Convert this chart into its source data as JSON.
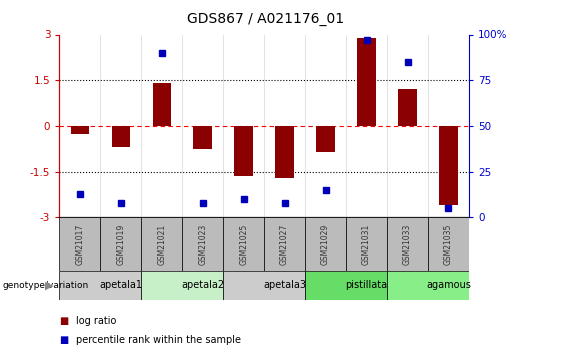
{
  "title": "GDS867 / A021176_01",
  "samples": [
    "GSM21017",
    "GSM21019",
    "GSM21021",
    "GSM21023",
    "GSM21025",
    "GSM21027",
    "GSM21029",
    "GSM21031",
    "GSM21033",
    "GSM21035"
  ],
  "log_ratio": [
    -0.25,
    -0.7,
    1.4,
    -0.75,
    -1.65,
    -1.7,
    -0.85,
    2.9,
    1.2,
    -2.6
  ],
  "percentile_rank": [
    13,
    8,
    90,
    8,
    10,
    8,
    15,
    97,
    85,
    5
  ],
  "ylim": [
    -3,
    3
  ],
  "yticks": [
    -3,
    -1.5,
    0,
    1.5,
    3
  ],
  "ytick_labels_left": [
    "-3",
    "-1.5",
    "0",
    "1.5",
    "3"
  ],
  "ytick_labels_right": [
    "0",
    "25",
    "50",
    "75",
    "100%"
  ],
  "groups": [
    {
      "name": "apetala1",
      "start": 0,
      "end": 2,
      "color": "#cccccc"
    },
    {
      "name": "apetala2",
      "start": 2,
      "end": 4,
      "color": "#c8f0c8"
    },
    {
      "name": "apetala3",
      "start": 4,
      "end": 6,
      "color": "#cccccc"
    },
    {
      "name": "pistillata",
      "start": 6,
      "end": 8,
      "color": "#66dd66"
    },
    {
      "name": "agamous",
      "start": 8,
      "end": 10,
      "color": "#88ee88"
    }
  ],
  "bar_color": "#8B0000",
  "dot_color": "#0000BB",
  "bar_width": 0.45,
  "sample_box_color": "#bbbbbb",
  "left_axis_color": "#cc0000",
  "right_axis_color": "#0000cc",
  "legend_items": [
    {
      "label": "log ratio",
      "color": "#8B0000"
    },
    {
      "label": "percentile rank within the sample",
      "color": "#0000BB"
    }
  ]
}
